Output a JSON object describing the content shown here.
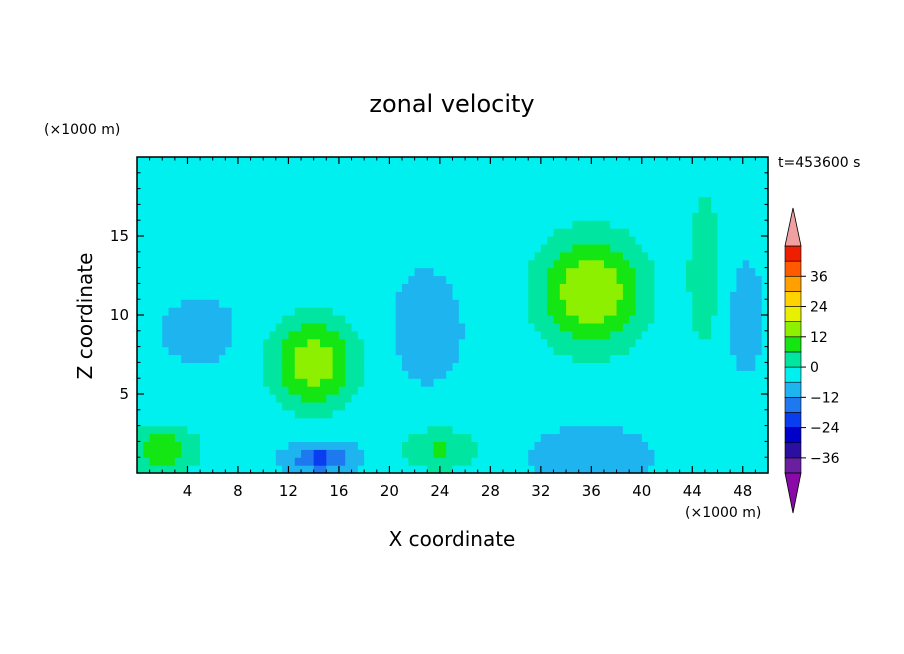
{
  "chart_data": {
    "type": "heatmap",
    "title": "zonal velocity",
    "time_label": "t=453600 s",
    "xlabel": "X coordinate",
    "ylabel": "Z coordinate",
    "x_unit": "(×1000 m)",
    "y_unit": "(×1000 m)",
    "xlim": [
      0,
      50
    ],
    "ylim": [
      0,
      20
    ],
    "x_ticks": [
      4,
      8,
      12,
      16,
      20,
      24,
      28,
      32,
      36,
      40,
      44,
      48
    ],
    "y_ticks": [
      5,
      10,
      15
    ],
    "colorbar": {
      "levels": [
        -42,
        -36,
        -30,
        -24,
        -18,
        -12,
        -6,
        0,
        6,
        12,
        18,
        24,
        30,
        36,
        42
      ],
      "tick_labels": [
        -36,
        -24,
        -12,
        0,
        12,
        24,
        36
      ],
      "colors": [
        "#6a1fa0",
        "#2a0fa0",
        "#0000c8",
        "#0a3cf0",
        "#1e78f0",
        "#1eb4f0",
        "#00f0f0",
        "#00e6a0",
        "#14e614",
        "#8cf000",
        "#e6f000",
        "#ffd200",
        "#ffa000",
        "#ff5a00",
        "#f01e00"
      ],
      "under_color": "#8a0aa8",
      "over_color": "#f0a0a0"
    },
    "features": [
      {
        "x": 14,
        "z": 7,
        "value": 16,
        "sx": 3.4,
        "sz": 3.0
      },
      {
        "x": 36,
        "z": 11.5,
        "value": 18,
        "sx": 4.2,
        "sz": 3.6
      },
      {
        "x": 14.5,
        "z": 1,
        "value": -20,
        "sx": 2.2,
        "sz": 0.9
      },
      {
        "x": 36,
        "z": 1,
        "value": -12,
        "sx": 3.5,
        "sz": 1.5
      },
      {
        "x": 23,
        "z": 9,
        "value": -10,
        "sx": 2.2,
        "sz": 2.6
      },
      {
        "x": 5,
        "z": 9,
        "value": -8,
        "sx": 3.0,
        "sz": 2.0
      },
      {
        "x": 2,
        "z": 1.5,
        "value": 10,
        "sx": 3.0,
        "sz": 1.6
      },
      {
        "x": 24,
        "z": 1.5,
        "value": 7,
        "sx": 3.0,
        "sz": 1.4
      },
      {
        "x": 20,
        "z": 16,
        "value": -6,
        "sx": 7.0,
        "sz": 4.0
      },
      {
        "x": 48,
        "z": 10,
        "value": -8,
        "sx": 1.6,
        "sz": 3.5
      },
      {
        "x": 45,
        "z": 13,
        "value": 4,
        "sx": 1.5,
        "sz": 6.0
      }
    ],
    "background_value": -5
  }
}
